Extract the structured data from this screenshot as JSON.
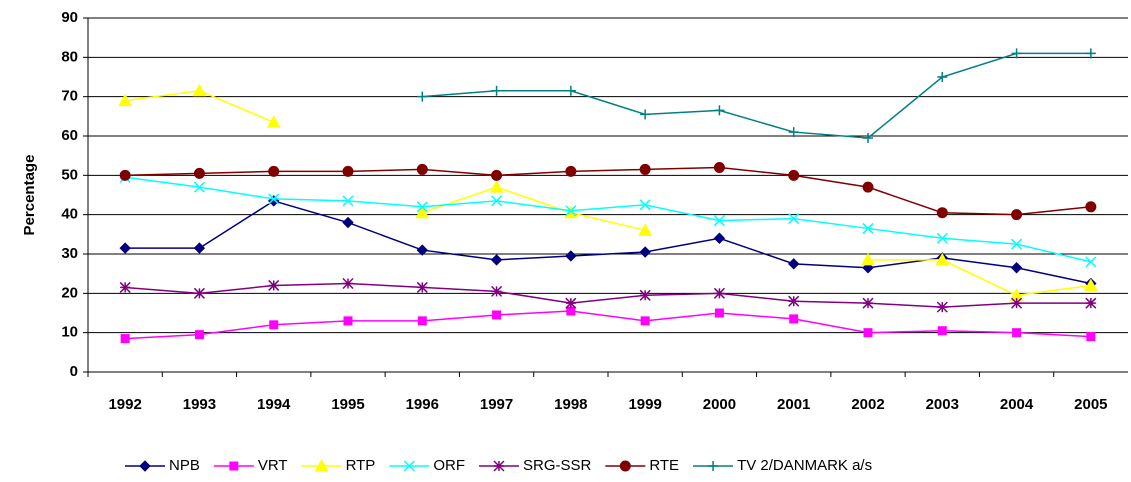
{
  "chart_data": {
    "type": "line",
    "y_label": "Percentage",
    "categories": [
      "1992",
      "1993",
      "1994",
      "1995",
      "1996",
      "1997",
      "1998",
      "1999",
      "2000",
      "2001",
      "2002",
      "2003",
      "2004",
      "2005"
    ],
    "ylim": [
      0,
      90
    ],
    "yticks": [
      0,
      10,
      20,
      30,
      40,
      50,
      60,
      70,
      80,
      90
    ],
    "grid": true,
    "legend": "bottom",
    "series": [
      {
        "name": "NPB",
        "color": "#000080",
        "marker": "diamond",
        "values": [
          31.5,
          31.5,
          43.5,
          38,
          31,
          28.5,
          29.5,
          30.5,
          34,
          27.5,
          26.5,
          29,
          26.5,
          22.5
        ]
      },
      {
        "name": "VRT",
        "color": "#ff00ff",
        "marker": "square",
        "values": [
          8.5,
          9.5,
          12,
          13,
          13,
          14.5,
          15.5,
          13,
          15,
          13.5,
          10,
          10.5,
          10,
          9
        ]
      },
      {
        "name": "RTP",
        "color": "#ffff00",
        "marker": "triangle",
        "values": [
          69,
          71.5,
          63.5,
          null,
          40.5,
          47,
          40.5,
          36,
          null,
          null,
          28.5,
          28.5,
          19.5,
          22
        ]
      },
      {
        "name": "ORF",
        "color": "#00ffff",
        "marker": "x",
        "values": [
          49.5,
          47,
          44,
          43.5,
          42,
          43.5,
          41,
          42.5,
          38.5,
          39,
          36.5,
          34,
          32.5,
          28
        ]
      },
      {
        "name": "SRG-SSR",
        "color": "#800080",
        "marker": "star",
        "values": [
          21.5,
          20,
          22,
          22.5,
          21.5,
          20.5,
          17.5,
          19.5,
          20,
          18,
          17.5,
          16.5,
          17.5,
          17.5
        ]
      },
      {
        "name": "RTE",
        "color": "#800000",
        "marker": "circle",
        "values": [
          50,
          50.5,
          51,
          51,
          51.5,
          50,
          51,
          51.5,
          52,
          50,
          47,
          40.5,
          40,
          42
        ]
      },
      {
        "name": "TV 2/DANMARK a/s",
        "color": "#008080",
        "marker": "plus",
        "values": [
          null,
          null,
          null,
          null,
          70,
          71.5,
          71.5,
          65.5,
          66.5,
          61,
          59.5,
          75,
          81,
          81
        ]
      }
    ]
  }
}
